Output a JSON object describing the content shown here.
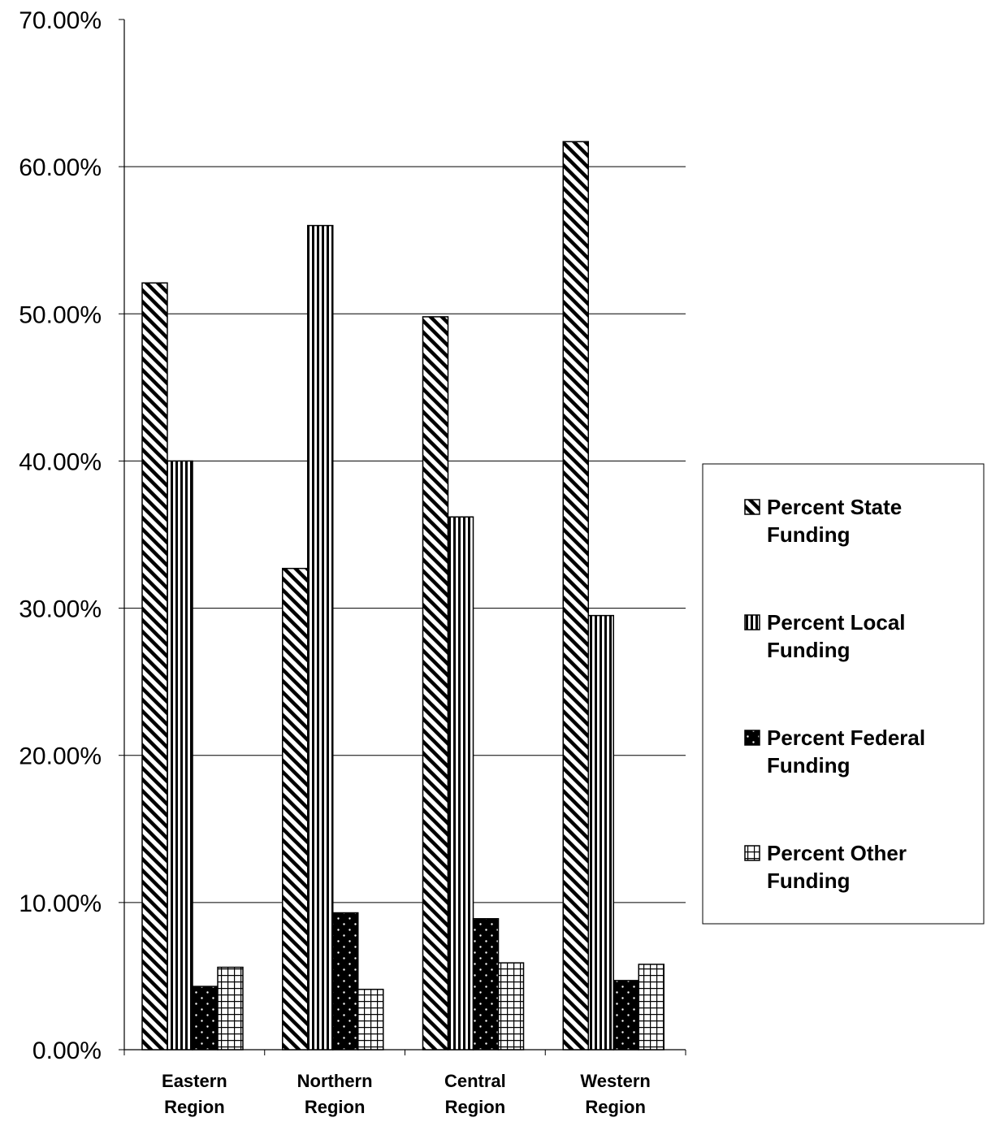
{
  "chart_data": {
    "type": "bar",
    "categories": [
      [
        "Eastern",
        "Region"
      ],
      [
        "Northern",
        "Region"
      ],
      [
        "Central",
        "Region"
      ],
      [
        "Western",
        "Region"
      ]
    ],
    "series": [
      {
        "name": [
          "Percent State",
          "Funding"
        ],
        "pattern": "diagonal",
        "values": [
          52.1,
          32.7,
          49.8,
          61.7
        ]
      },
      {
        "name": [
          "Percent Local",
          "Funding"
        ],
        "pattern": "vertical",
        "values": [
          40.0,
          56.0,
          36.2,
          29.5
        ]
      },
      {
        "name": [
          "Percent Federal",
          "Funding"
        ],
        "pattern": "dotted",
        "values": [
          4.3,
          9.3,
          8.9,
          4.7
        ]
      },
      {
        "name": [
          "Percent Other",
          "Funding"
        ],
        "pattern": "grid",
        "values": [
          5.6,
          4.1,
          5.9,
          5.8
        ]
      }
    ],
    "y_ticks": [
      "0.00%",
      "10.00%",
      "20.00%",
      "30.00%",
      "40.00%",
      "50.00%",
      "60.00%",
      "70.00%"
    ],
    "ylim": [
      0,
      70
    ],
    "grid": true,
    "legend": "right",
    "colors": {
      "bar_stroke": "#000000",
      "grid": "#000000",
      "background": "#ffffff"
    }
  }
}
